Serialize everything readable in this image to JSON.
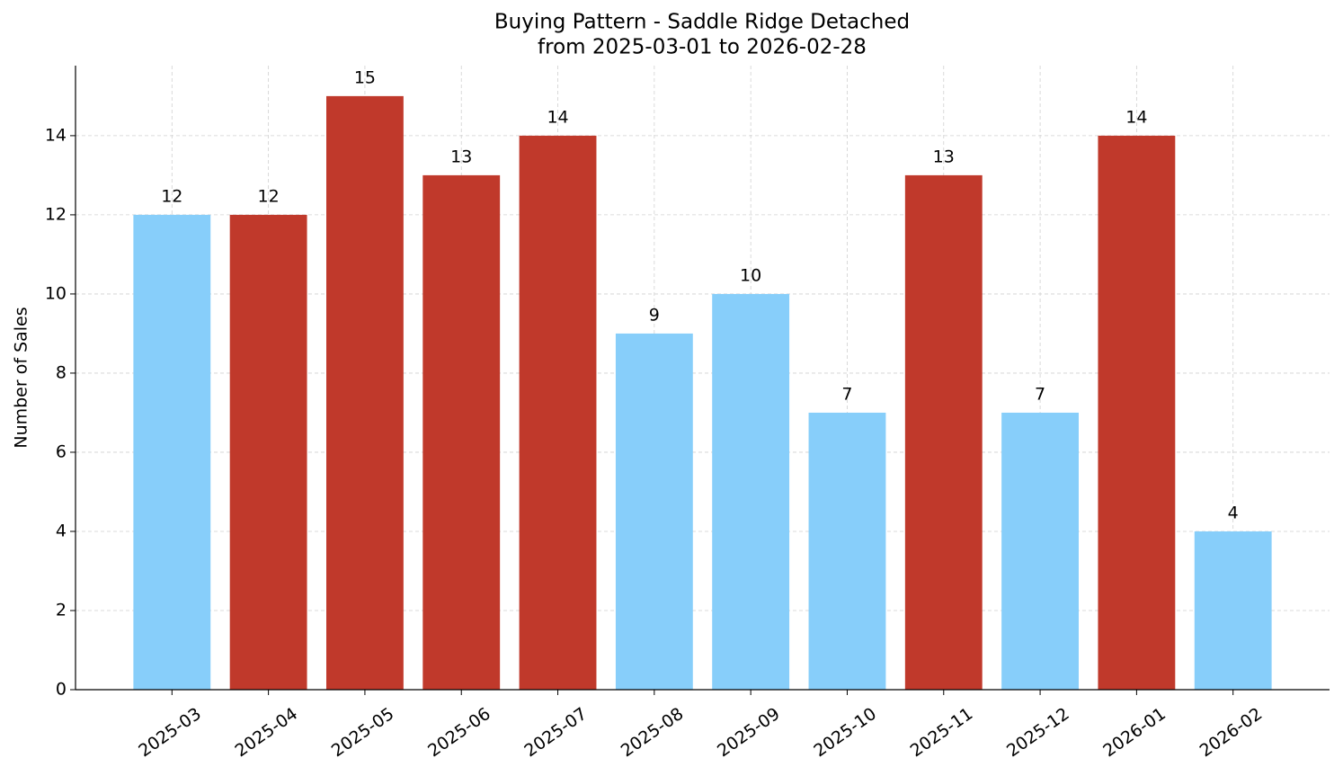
{
  "chart_data": {
    "type": "bar",
    "title": "Buying Pattern - Saddle Ridge Detached",
    "subtitle": "from 2025-03-01 to 2026-02-28",
    "y_label": "Number of Sales",
    "categories": [
      "2025-03",
      "2025-04",
      "2025-05",
      "2025-06",
      "2025-07",
      "2025-08",
      "2025-09",
      "2025-10",
      "2025-11",
      "2025-12",
      "2026-01",
      "2026-02"
    ],
    "values": [
      12,
      12,
      15,
      13,
      14,
      9,
      10,
      7,
      13,
      7,
      14,
      4
    ],
    "colors": [
      "#87cefa",
      "#c0392b",
      "#c0392b",
      "#c0392b",
      "#c0392b",
      "#87cefa",
      "#87cefa",
      "#87cefa",
      "#c0392b",
      "#87cefa",
      "#c0392b",
      "#87cefa"
    ],
    "ylim": [
      0,
      15.77
    ],
    "yticks": [
      0,
      2,
      4,
      6,
      8,
      10,
      12,
      14
    ],
    "grid": true
  }
}
